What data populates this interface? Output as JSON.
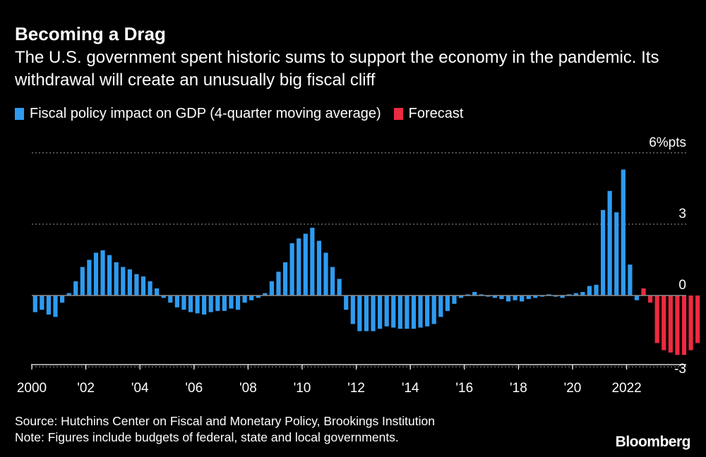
{
  "header": {
    "title": "Becoming a Drag",
    "subtitle": "The U.S. government spent historic sums to support the economy in the pandemic. Its withdrawal will create an unusually big fiscal cliff"
  },
  "legend": [
    {
      "label": "Fiscal policy impact on GDP (4-quarter moving average)",
      "color": "#2e9bf0"
    },
    {
      "label": "Forecast",
      "color": "#ee2a3f"
    }
  ],
  "footer": {
    "source": "Source: Hutchins Center on Fiscal and Monetary Policy, Brookings Institution",
    "note": "Note: Figures include budgets of federal, state and local governments.",
    "brand": "Bloomberg"
  },
  "chart_data": {
    "type": "bar",
    "title": "Becoming a Drag",
    "xlabel": "",
    "ylabel": "%pts",
    "ylim": [
      -3,
      6
    ],
    "y_ticks": [
      {
        "v": 6,
        "label": "6%pts"
      },
      {
        "v": 3,
        "label": "3"
      },
      {
        "v": 0,
        "label": "0"
      },
      {
        "v": -3,
        "label": "-3"
      }
    ],
    "x_ticks": [
      {
        "label": "2000",
        "year": 2000
      },
      {
        "label": "'02",
        "year": 2002
      },
      {
        "label": "'04",
        "year": 2004
      },
      {
        "label": "'06",
        "year": 2006
      },
      {
        "label": "'08",
        "year": 2008
      },
      {
        "label": "'10",
        "year": 2010
      },
      {
        "label": "'12",
        "year": 2012
      },
      {
        "label": "'14",
        "year": 2014
      },
      {
        "label": "'16",
        "year": 2016
      },
      {
        "label": "'18",
        "year": 2018
      },
      {
        "label": "'20",
        "year": 2020
      },
      {
        "label": "2022",
        "year": 2022
      }
    ],
    "start": "2000Q1",
    "series": [
      {
        "name": "Fiscal policy impact on GDP (4-quarter moving average)",
        "color": "#2e9bf0",
        "values": [
          -0.7,
          -0.6,
          -0.8,
          -0.9,
          -0.3,
          0.1,
          0.6,
          1.2,
          1.5,
          1.8,
          1.9,
          1.7,
          1.4,
          1.2,
          1.1,
          0.9,
          0.8,
          0.6,
          0.3,
          -0.1,
          -0.3,
          -0.5,
          -0.6,
          -0.7,
          -0.75,
          -0.8,
          -0.7,
          -0.65,
          -0.65,
          -0.55,
          -0.6,
          -0.3,
          -0.2,
          -0.1,
          0.1,
          0.6,
          1.0,
          1.4,
          2.2,
          2.4,
          2.6,
          2.85,
          2.3,
          1.8,
          1.2,
          0.7,
          -0.6,
          -1.2,
          -1.5,
          -1.5,
          -1.5,
          -1.4,
          -1.3,
          -1.35,
          -1.4,
          -1.4,
          -1.4,
          -1.35,
          -1.3,
          -1.2,
          -0.9,
          -0.65,
          -0.35,
          -0.1,
          0.05,
          0.15,
          0.05,
          -0.05,
          -0.1,
          -0.15,
          -0.25,
          -0.2,
          -0.25,
          -0.15,
          -0.1,
          -0.05,
          0.05,
          -0.05,
          -0.1,
          0.05,
          0.1,
          0.15,
          0.4,
          0.45,
          3.6,
          4.4,
          3.5,
          5.3,
          1.3,
          -0.2
        ]
      },
      {
        "name": "Forecast",
        "color": "#ee2a3f",
        "values": [
          0.3,
          -0.3,
          -2.0,
          -2.3,
          -2.4,
          -2.5,
          -2.5,
          -2.3,
          -2.0
        ]
      }
    ]
  }
}
